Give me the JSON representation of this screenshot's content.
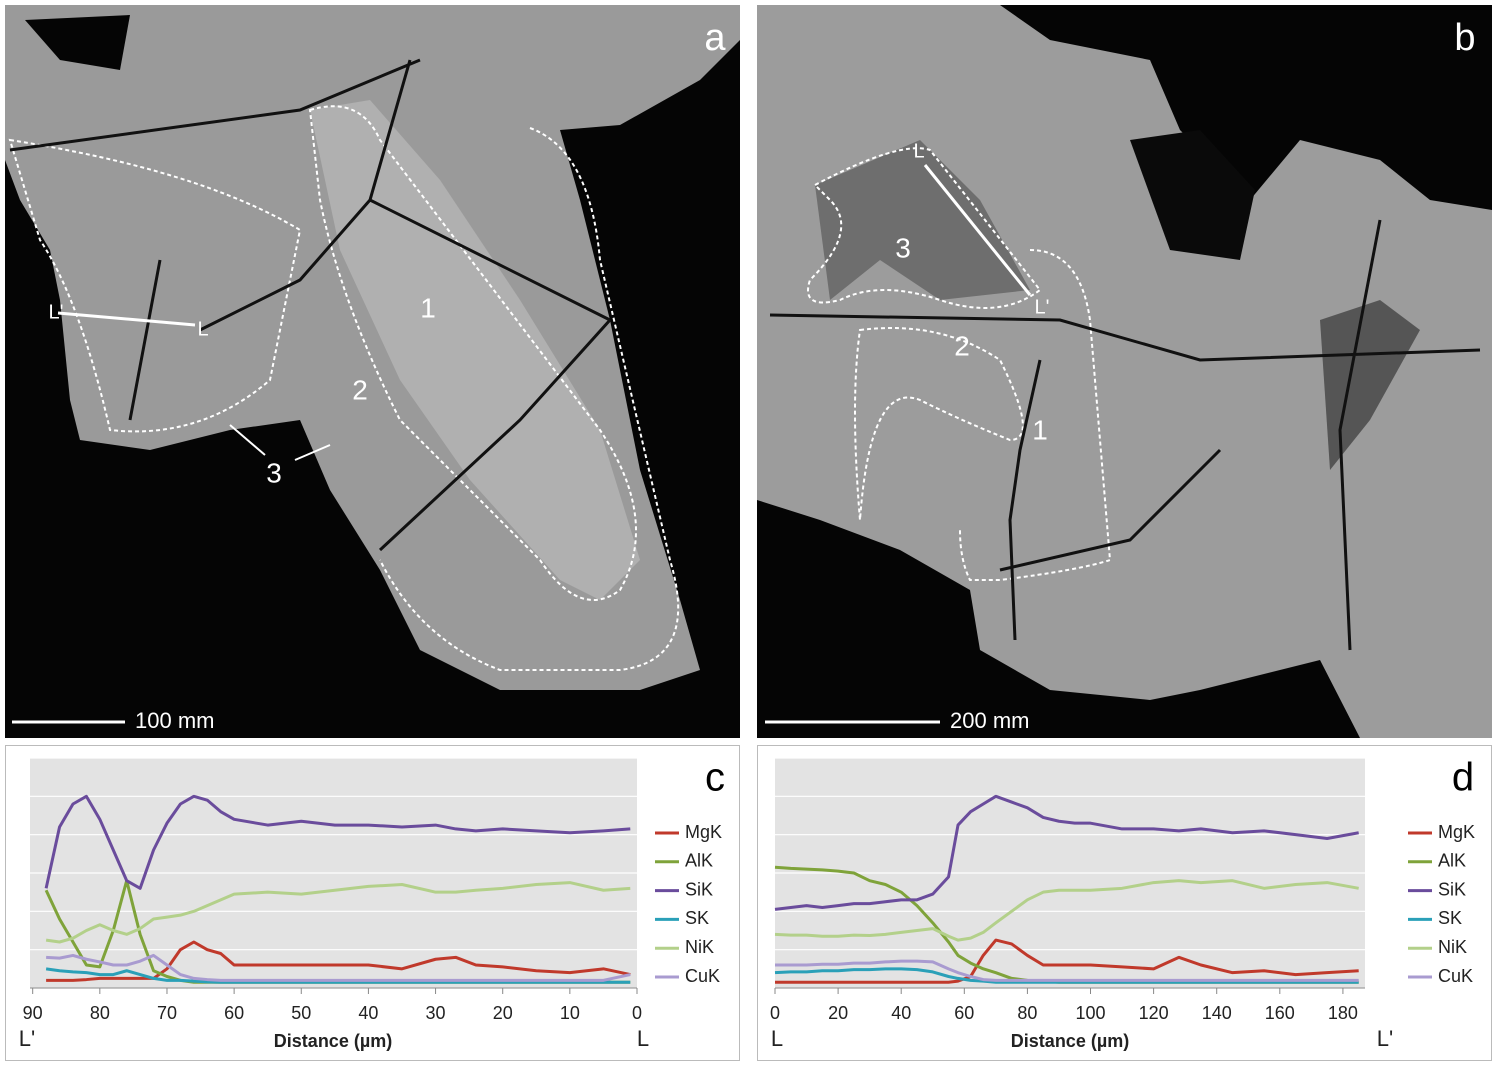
{
  "panels": [
    {
      "label": "a",
      "scale_bar": "100 mm",
      "region_labels": [
        "1",
        "2",
        "3"
      ],
      "line_labels": [
        "L'",
        "L"
      ]
    },
    {
      "label": "b",
      "scale_bar": "200 mm",
      "region_labels": [
        "1",
        "2",
        "3"
      ],
      "line_labels": [
        "L",
        "L'"
      ]
    }
  ],
  "chart_data": [
    {
      "type": "line",
      "label": "c",
      "x_label": "Distance (µm)",
      "start_label": "L'",
      "end_label": "L",
      "xlim": [
        90.4,
        0
      ],
      "xticks": [
        90,
        80,
        70,
        60,
        50,
        40,
        30,
        20,
        10,
        0
      ],
      "ylim": [
        0,
        6
      ],
      "yticks": [
        0,
        1,
        2,
        3,
        4,
        5,
        6
      ],
      "grid": true,
      "x": [
        88,
        86,
        84,
        82,
        80,
        78,
        76,
        74,
        72,
        70,
        68,
        66,
        64,
        62,
        60,
        55,
        50,
        45,
        40,
        35,
        30,
        27,
        24,
        20,
        15,
        10,
        5,
        1
      ],
      "series": [
        {
          "name": "MgK",
          "color": "#c0392b",
          "values": [
            0.2,
            0.2,
            0.2,
            0.22,
            0.25,
            0.25,
            0.25,
            0.25,
            0.25,
            0.5,
            1.0,
            1.2,
            1.0,
            0.9,
            0.6,
            0.6,
            0.6,
            0.6,
            0.6,
            0.5,
            0.75,
            0.8,
            0.6,
            0.55,
            0.45,
            0.4,
            0.5,
            0.35
          ]
        },
        {
          "name": "AlK",
          "color": "#7fa33a",
          "values": [
            2.55,
            1.8,
            1.2,
            0.6,
            0.55,
            1.5,
            2.8,
            1.4,
            0.45,
            0.3,
            0.2,
            0.15,
            0.15,
            0.15,
            0.15,
            0.15,
            0.15,
            0.15,
            0.15,
            0.15,
            0.15,
            0.15,
            0.15,
            0.15,
            0.15,
            0.15,
            0.15,
            0.15
          ]
        },
        {
          "name": "SiK",
          "color": "#6a4c9c",
          "values": [
            2.6,
            4.2,
            4.8,
            5.0,
            4.4,
            3.6,
            2.8,
            2.6,
            3.6,
            4.3,
            4.8,
            5.0,
            4.9,
            4.6,
            4.4,
            4.25,
            4.35,
            4.25,
            4.25,
            4.2,
            4.25,
            4.15,
            4.1,
            4.15,
            4.1,
            4.05,
            4.1,
            4.15
          ]
        },
        {
          "name": "SK",
          "color": "#2aa0b8",
          "values": [
            0.5,
            0.45,
            0.42,
            0.4,
            0.35,
            0.35,
            0.45,
            0.35,
            0.25,
            0.2,
            0.2,
            0.18,
            0.16,
            0.15,
            0.15,
            0.15,
            0.15,
            0.15,
            0.15,
            0.15,
            0.15,
            0.15,
            0.15,
            0.15,
            0.15,
            0.15,
            0.15,
            0.15
          ]
        },
        {
          "name": "NiK",
          "color": "#b3d08a",
          "values": [
            1.25,
            1.2,
            1.3,
            1.5,
            1.65,
            1.5,
            1.4,
            1.55,
            1.8,
            1.85,
            1.9,
            2.0,
            2.15,
            2.3,
            2.45,
            2.5,
            2.45,
            2.55,
            2.65,
            2.7,
            2.5,
            2.5,
            2.55,
            2.6,
            2.7,
            2.75,
            2.55,
            2.6
          ]
        },
        {
          "name": "CuK",
          "color": "#a99bd0",
          "values": [
            0.8,
            0.78,
            0.85,
            0.75,
            0.68,
            0.6,
            0.6,
            0.7,
            0.85,
            0.6,
            0.35,
            0.25,
            0.22,
            0.2,
            0.2,
            0.2,
            0.2,
            0.2,
            0.2,
            0.2,
            0.2,
            0.2,
            0.2,
            0.2,
            0.2,
            0.2,
            0.2,
            0.35
          ]
        }
      ]
    },
    {
      "type": "line",
      "label": "d",
      "x_label": "Distance (µm)",
      "start_label": "L",
      "end_label": "L'",
      "xlim": [
        0,
        187
      ],
      "xticks": [
        0,
        20,
        40,
        60,
        80,
        100,
        120,
        140,
        160,
        180
      ],
      "ylim": [
        0,
        6
      ],
      "yticks": [
        0,
        1,
        2,
        3,
        4,
        5,
        6
      ],
      "grid": true,
      "x": [
        0,
        5,
        10,
        15,
        20,
        25,
        30,
        35,
        40,
        45,
        50,
        55,
        58,
        62,
        66,
        70,
        75,
        80,
        85,
        90,
        95,
        100,
        110,
        120,
        128,
        135,
        145,
        155,
        165,
        175,
        185
      ],
      "series": [
        {
          "name": "MgK",
          "color": "#c0392b",
          "values": [
            0.15,
            0.15,
            0.15,
            0.15,
            0.15,
            0.15,
            0.15,
            0.15,
            0.15,
            0.15,
            0.15,
            0.15,
            0.18,
            0.3,
            0.85,
            1.25,
            1.15,
            0.85,
            0.6,
            0.6,
            0.6,
            0.6,
            0.55,
            0.5,
            0.8,
            0.6,
            0.4,
            0.45,
            0.35,
            0.4,
            0.45
          ]
        },
        {
          "name": "AlK",
          "color": "#7fa33a",
          "values": [
            3.15,
            3.12,
            3.1,
            3.08,
            3.05,
            3.0,
            2.8,
            2.7,
            2.5,
            2.15,
            1.7,
            1.2,
            0.85,
            0.65,
            0.5,
            0.4,
            0.25,
            0.2,
            0.18,
            0.15,
            0.15,
            0.15,
            0.15,
            0.15,
            0.15,
            0.15,
            0.15,
            0.15,
            0.15,
            0.15,
            0.15
          ]
        },
        {
          "name": "SiK",
          "color": "#6a4c9c",
          "values": [
            2.05,
            2.1,
            2.15,
            2.1,
            2.15,
            2.2,
            2.2,
            2.25,
            2.3,
            2.3,
            2.45,
            2.9,
            4.25,
            4.6,
            4.8,
            5.0,
            4.85,
            4.7,
            4.45,
            4.35,
            4.3,
            4.3,
            4.15,
            4.15,
            4.1,
            4.15,
            4.05,
            4.1,
            4.0,
            3.9,
            4.05
          ]
        },
        {
          "name": "SK",
          "color": "#2aa0b8",
          "values": [
            0.4,
            0.42,
            0.42,
            0.45,
            0.45,
            0.48,
            0.48,
            0.5,
            0.5,
            0.48,
            0.42,
            0.3,
            0.25,
            0.2,
            0.18,
            0.15,
            0.15,
            0.15,
            0.15,
            0.15,
            0.15,
            0.15,
            0.15,
            0.15,
            0.15,
            0.15,
            0.15,
            0.15,
            0.15,
            0.15,
            0.15
          ]
        },
        {
          "name": "NiK",
          "color": "#b3d08a",
          "values": [
            1.4,
            1.38,
            1.38,
            1.35,
            1.35,
            1.38,
            1.37,
            1.4,
            1.45,
            1.5,
            1.55,
            1.35,
            1.25,
            1.3,
            1.45,
            1.7,
            2.0,
            2.3,
            2.5,
            2.55,
            2.55,
            2.55,
            2.6,
            2.75,
            2.8,
            2.75,
            2.8,
            2.6,
            2.7,
            2.75,
            2.6
          ]
        },
        {
          "name": "CuK",
          "color": "#a99bd0",
          "values": [
            0.6,
            0.6,
            0.6,
            0.62,
            0.62,
            0.65,
            0.65,
            0.68,
            0.7,
            0.7,
            0.68,
            0.5,
            0.4,
            0.3,
            0.22,
            0.2,
            0.2,
            0.2,
            0.2,
            0.2,
            0.2,
            0.2,
            0.2,
            0.2,
            0.2,
            0.2,
            0.2,
            0.2,
            0.2,
            0.2,
            0.2
          ]
        }
      ]
    }
  ]
}
